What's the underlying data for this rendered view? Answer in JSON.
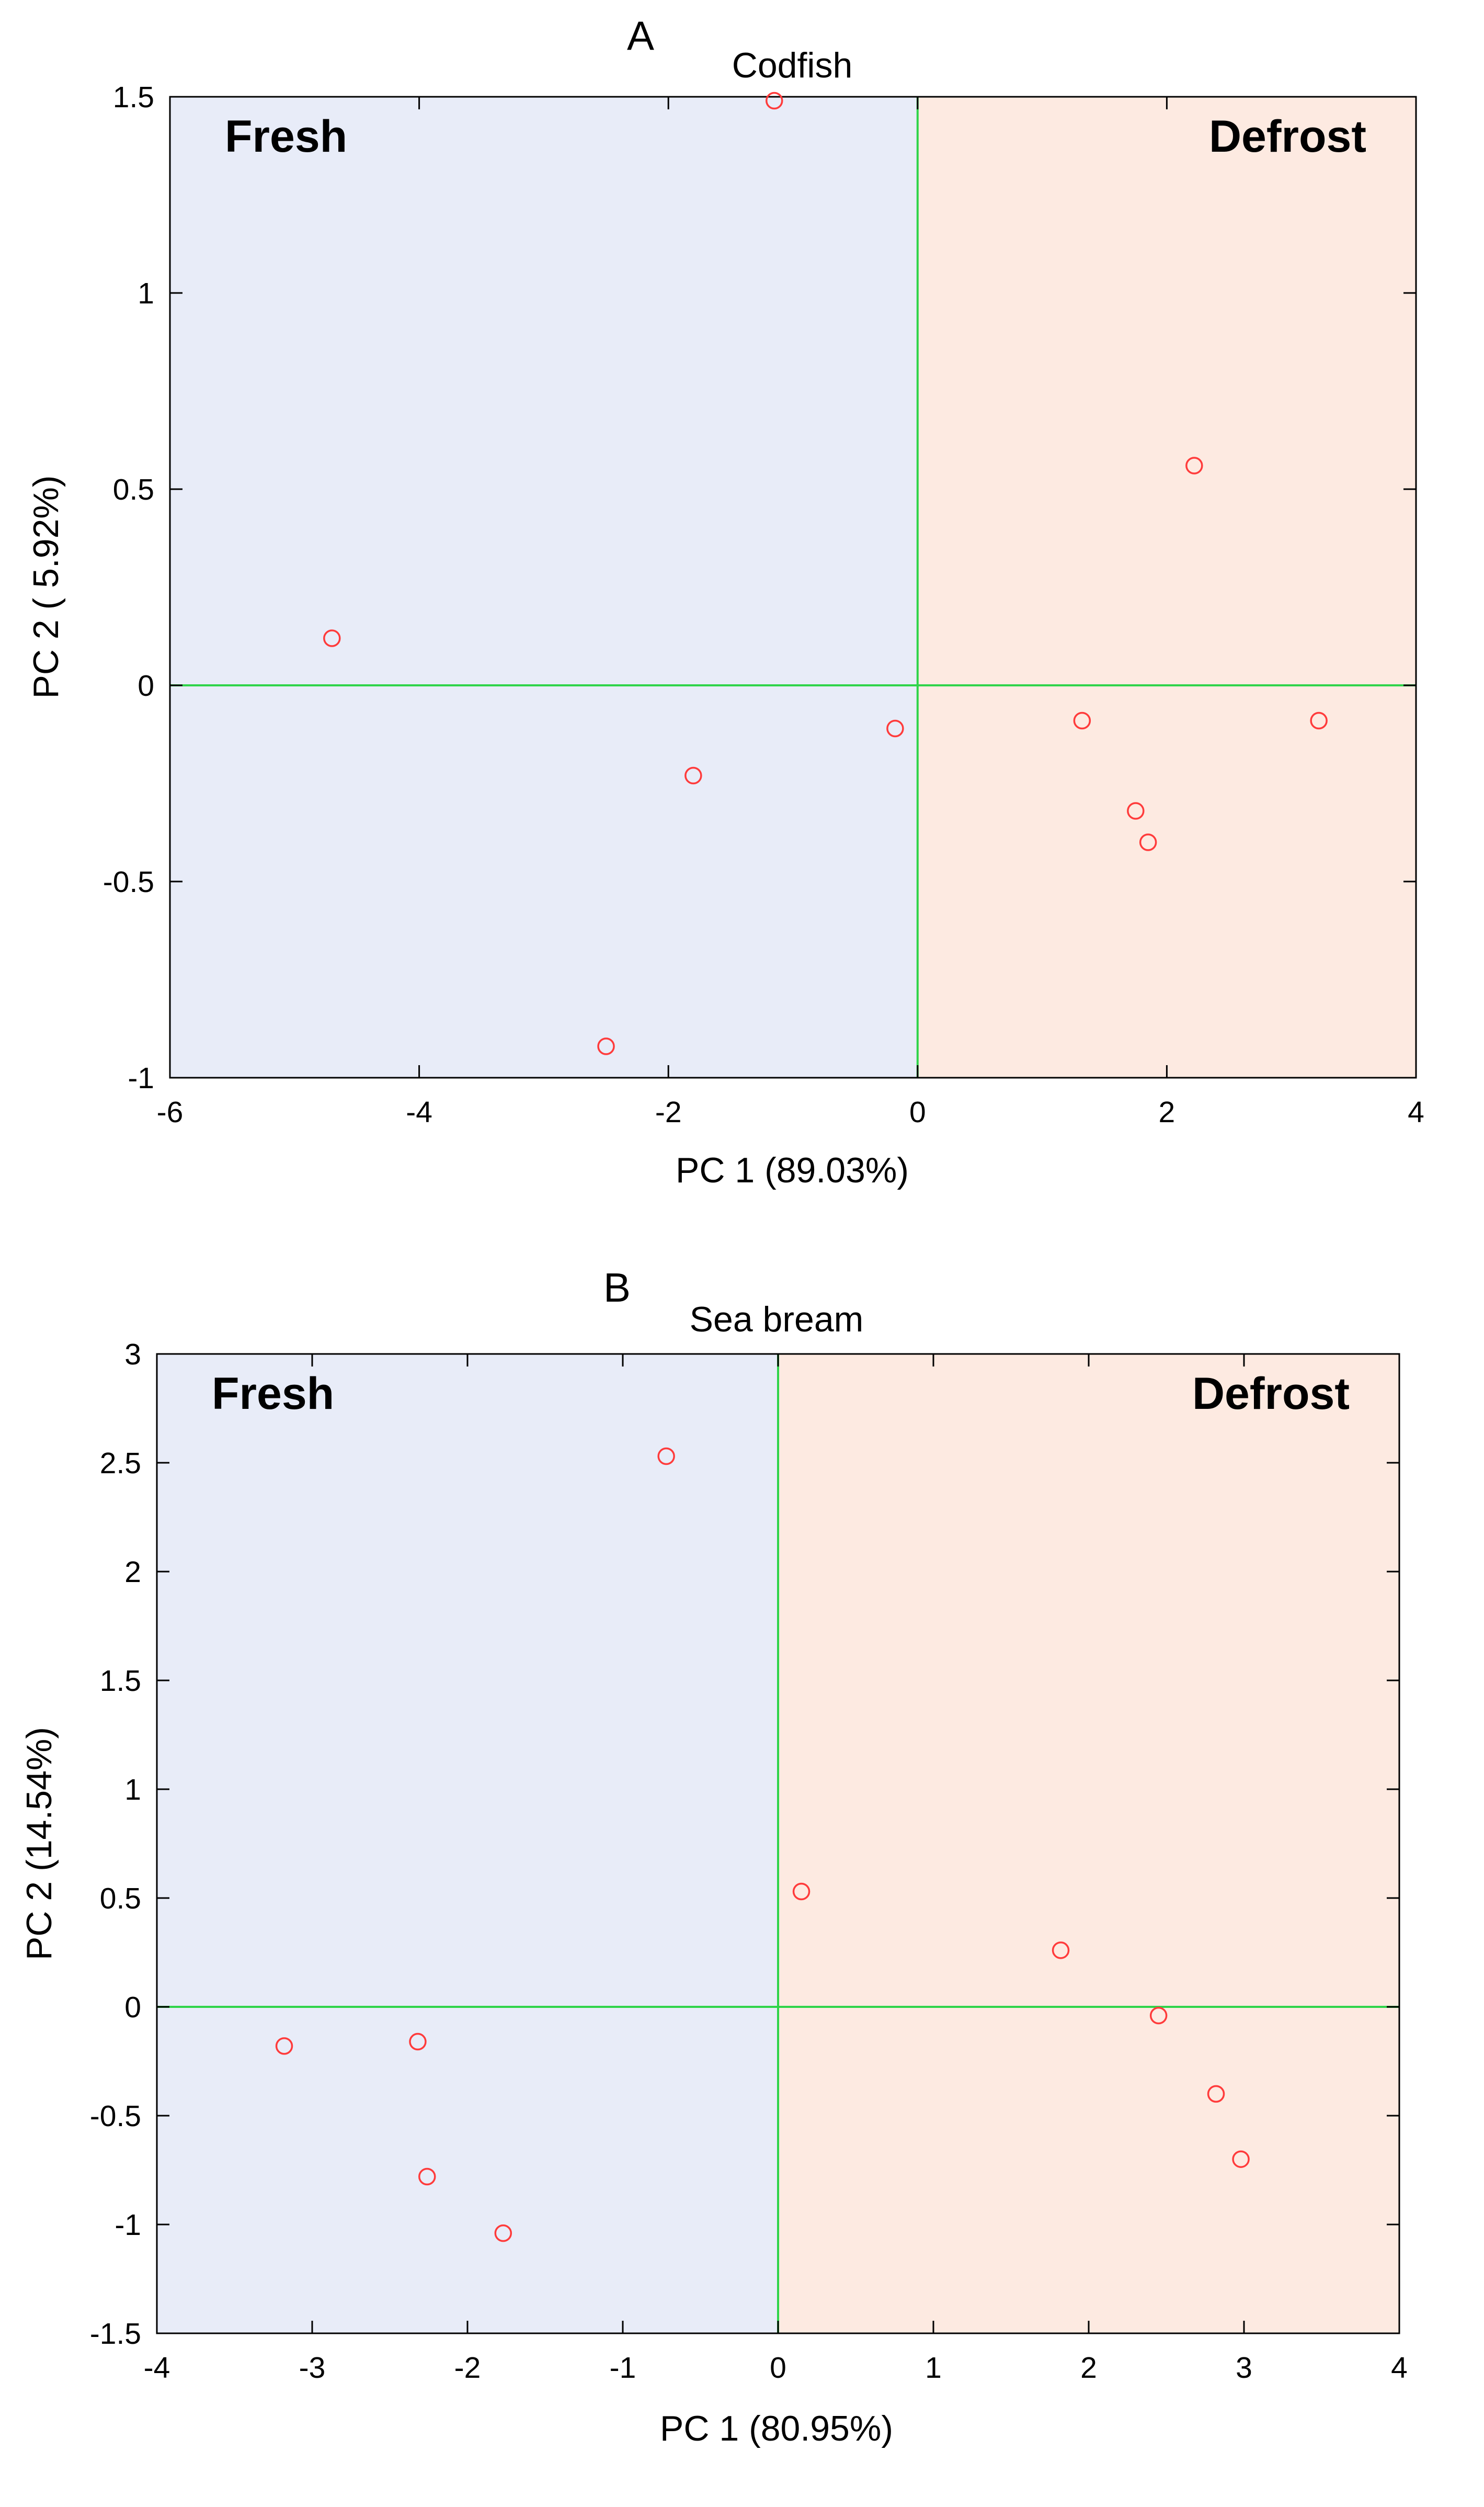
{
  "colors": {
    "fresh_region": "#e8ecf8",
    "defrost_region": "#fdeae1",
    "divider": "#2fd44a",
    "marker": "#ff3b3b",
    "axis": "#000000"
  },
  "chart_data": [
    {
      "type": "scatter",
      "panel_letter": "A",
      "title": "Codfish",
      "xlabel": "PC 1 (89.03%)",
      "ylabel": "PC 2 ( 5.92%)",
      "xlim": [
        -6,
        4
      ],
      "ylim": [
        -1,
        1.5
      ],
      "xticks": [
        -6,
        -4,
        -2,
        0,
        2,
        4
      ],
      "xtick_labels": [
        "-6",
        "-4",
        "-2",
        "0",
        "2",
        "4"
      ],
      "yticks": [
        -1,
        -0.5,
        0,
        0.5,
        1,
        1.5
      ],
      "ytick_labels": [
        "-1",
        "-0.5",
        "0",
        "0.5",
        "1",
        "1.5"
      ],
      "regions": [
        {
          "label": "Fresh",
          "x_range": [
            -6,
            0
          ],
          "color_key": "fresh_region",
          "label_placement": "top-left"
        },
        {
          "label": "Defrost",
          "x_range": [
            0,
            4
          ],
          "color_key": "defrost_region",
          "label_placement": "top-right"
        }
      ],
      "reference_lines": {
        "x": 0,
        "y": 0
      },
      "points": [
        {
          "x": -4.7,
          "y": 0.12
        },
        {
          "x": -1.15,
          "y": 1.49
        },
        {
          "x": -2.5,
          "y": -0.92
        },
        {
          "x": -1.8,
          "y": -0.23
        },
        {
          "x": -0.18,
          "y": -0.11
        },
        {
          "x": 2.22,
          "y": 0.56
        },
        {
          "x": 1.32,
          "y": -0.09
        },
        {
          "x": 3.22,
          "y": -0.09
        },
        {
          "x": 1.75,
          "y": -0.32
        },
        {
          "x": 1.85,
          "y": -0.4
        }
      ]
    },
    {
      "type": "scatter",
      "panel_letter": "B",
      "title": "Sea bream",
      "xlabel": "PC 1 (80.95%)",
      "ylabel": "PC 2 (14.54%)",
      "xlim": [
        -4,
        4
      ],
      "ylim": [
        -1.5,
        3
      ],
      "xticks": [
        -4,
        -3,
        -2,
        -1,
        0,
        1,
        2,
        3,
        4
      ],
      "xtick_labels": [
        "-4",
        "-3",
        "-2",
        "-1",
        "0",
        "1",
        "2",
        "3",
        "4"
      ],
      "yticks": [
        -1.5,
        -1,
        -0.5,
        0,
        0.5,
        1,
        1.5,
        2,
        2.5,
        3
      ],
      "ytick_labels": [
        "-1.5",
        "-1",
        "-0.5",
        "0",
        "0.5",
        "1",
        "1.5",
        "2",
        "2.5",
        "3"
      ],
      "regions": [
        {
          "label": "Fresh",
          "x_range": [
            -4,
            0
          ],
          "color_key": "fresh_region",
          "label_placement": "top-left"
        },
        {
          "label": "Defrost",
          "x_range": [
            0,
            4
          ],
          "color_key": "defrost_region",
          "label_placement": "top-right"
        }
      ],
      "reference_lines": {
        "x": 0,
        "y": 0
      },
      "points": [
        {
          "x": -0.72,
          "y": 2.53
        },
        {
          "x": 0.15,
          "y": 0.53
        },
        {
          "x": 1.82,
          "y": 0.26
        },
        {
          "x": 2.45,
          "y": -0.04
        },
        {
          "x": 2.82,
          "y": -0.4
        },
        {
          "x": 2.98,
          "y": -0.7
        },
        {
          "x": -3.18,
          "y": -0.18
        },
        {
          "x": -2.32,
          "y": -0.16
        },
        {
          "x": -2.26,
          "y": -0.78
        },
        {
          "x": -1.77,
          "y": -1.04
        }
      ]
    }
  ]
}
